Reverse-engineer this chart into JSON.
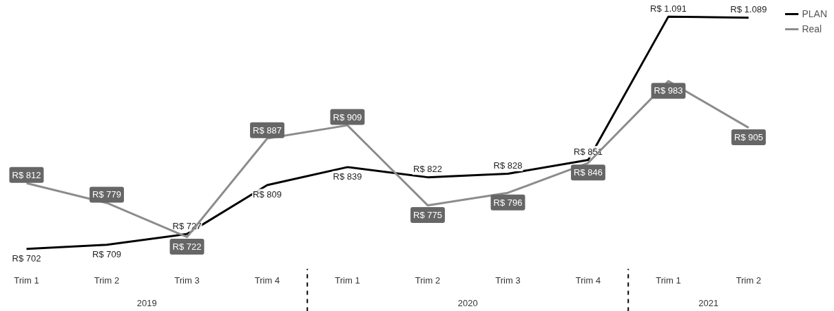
{
  "chart_data": {
    "type": "line",
    "categories": [
      "Trim 1",
      "Trim 2",
      "Trim 3",
      "Trim 4",
      "Trim 1",
      "Trim 2",
      "Trim 3",
      "Trim 4",
      "Trim 1",
      "Trim 2"
    ],
    "series": [
      {
        "name": "PLAN",
        "color": "#000000",
        "values": [
          702,
          709,
          727,
          809,
          839,
          822,
          828,
          851,
          1091,
          1089
        ],
        "value_labels": [
          "R$ 702",
          "R$ 709",
          "R$ 727",
          "R$ 809",
          "R$ 839",
          "R$ 822",
          "R$ 828",
          "R$ 851",
          "R$ 1.091",
          "R$ 1.089"
        ]
      },
      {
        "name": "Real",
        "color": "#8c8c8c",
        "values": [
          812,
          779,
          722,
          887,
          909,
          775,
          796,
          846,
          983,
          905
        ],
        "value_labels": [
          "R$ 812",
          "R$ 779",
          "R$ 722",
          "R$ 887",
          "R$ 909",
          "R$ 775",
          "R$ 796",
          "R$ 846",
          "R$ 983",
          "R$ 905"
        ]
      }
    ],
    "annotations": [
      "2019",
      "2020",
      "2021"
    ],
    "legend": "top right",
    "grid": false,
    "marker": "none",
    "line_style": "solid"
  }
}
